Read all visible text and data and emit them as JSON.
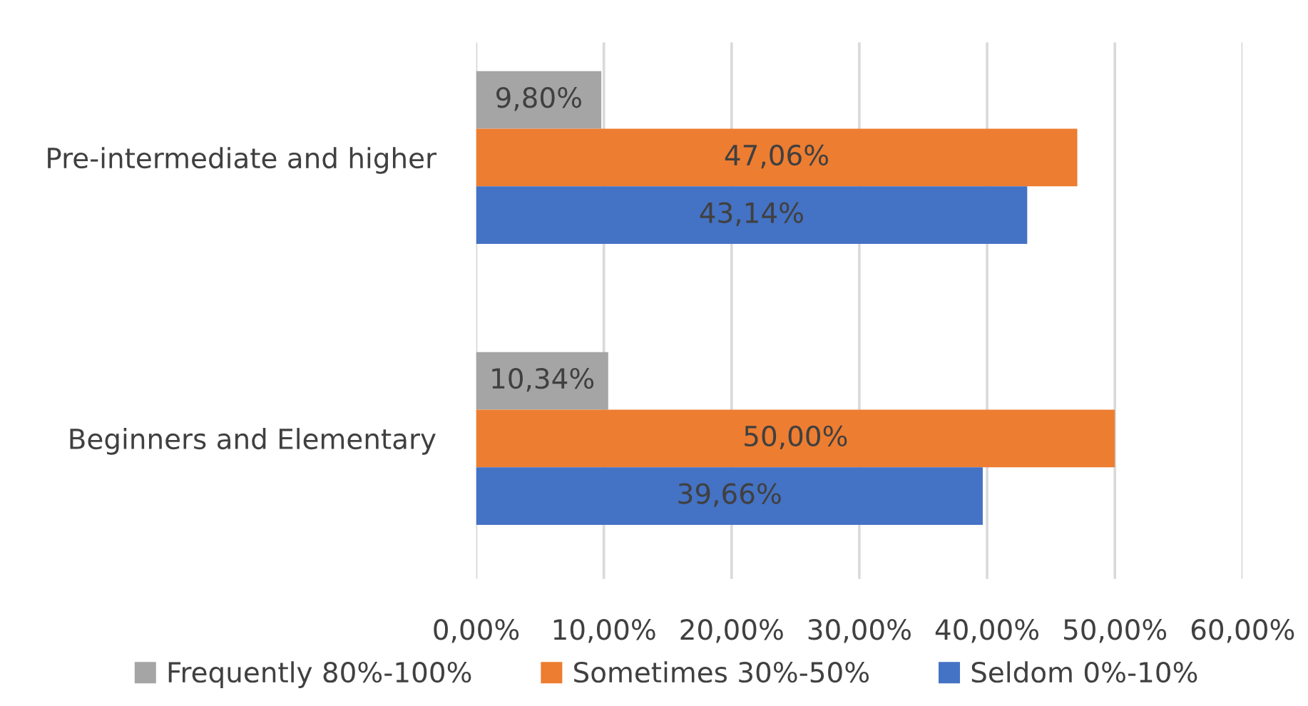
{
  "chart_data": {
    "type": "bar",
    "orientation": "horizontal",
    "categories": [
      "Pre-intermediate and higher",
      "Beginners and Elementary"
    ],
    "series": [
      {
        "name": "Frequently 80%-100%",
        "color": "#a5a5a5",
        "values": [
          9.8,
          10.34
        ],
        "value_labels": [
          "9,80%",
          "10,34%"
        ]
      },
      {
        "name": "Sometimes 30%-50%",
        "color": "#ed7d31",
        "values": [
          47.06,
          50.0
        ],
        "value_labels": [
          "47,06%",
          "50,00%"
        ]
      },
      {
        "name": "Seldom 0%-10%",
        "color": "#4472c4",
        "values": [
          43.14,
          39.66
        ],
        "value_labels": [
          "43,14%",
          "39,66%"
        ]
      }
    ],
    "xlim": [
      0,
      60
    ],
    "xticks": [
      {
        "value": 0,
        "label": "0,00%"
      },
      {
        "value": 10,
        "label": "10,00%"
      },
      {
        "value": 20,
        "label": "20,00%"
      },
      {
        "value": 30,
        "label": "30,00%"
      },
      {
        "value": 40,
        "label": "40,00%"
      },
      {
        "value": 50,
        "label": "50,00%"
      },
      {
        "value": 60,
        "label": "60,00%"
      }
    ],
    "grid": "x",
    "legend": "bottom"
  }
}
